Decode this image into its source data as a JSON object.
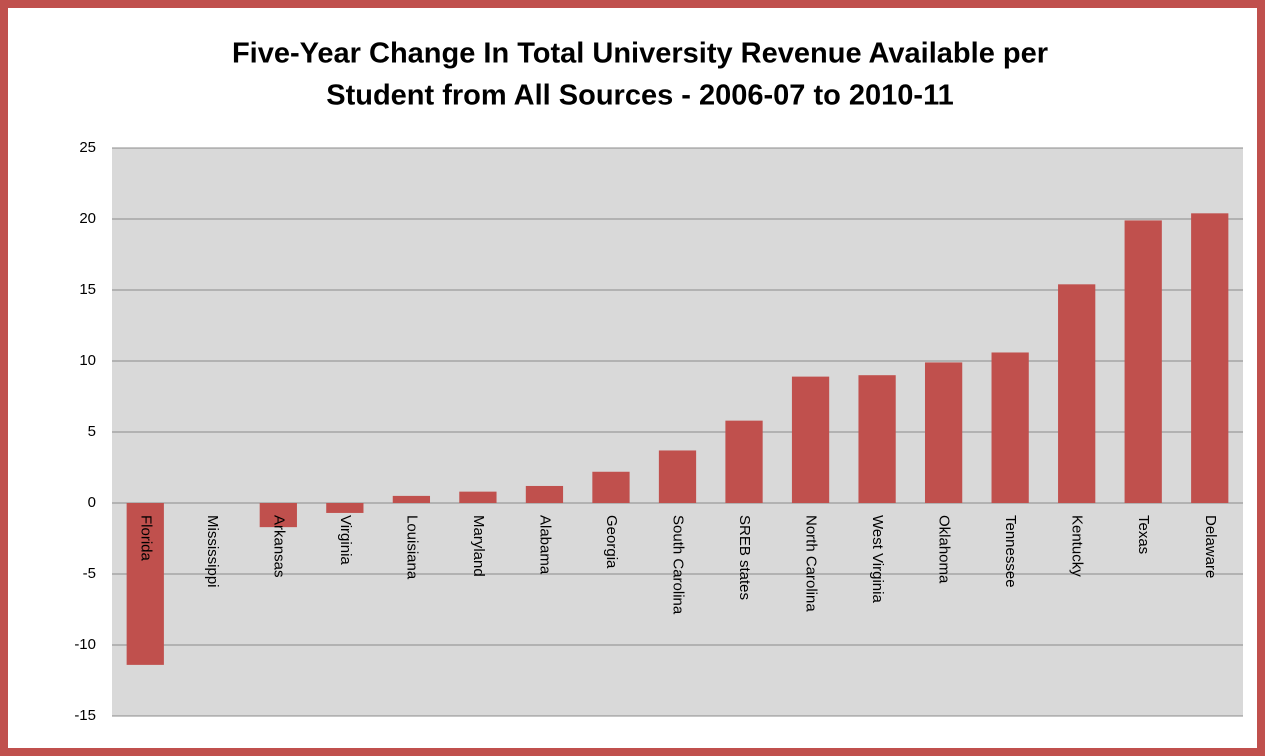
{
  "chart_data": {
    "type": "bar",
    "title": [
      "Five-Year Change In Total University Revenue Available per",
      "Student from All Sources - 2006-07 to 2010-11"
    ],
    "categories": [
      "Florida",
      "Mississippi",
      "Arkansas",
      "Virginia",
      "Louisiana",
      "Maryland",
      "Alabama",
      "Georgia",
      "South Carolina",
      "SREB states",
      "North Carolina",
      "West Virginia",
      "Oklahoma",
      "Tennessee",
      "Kentucky",
      "Texas",
      "Delaware"
    ],
    "values": [
      -11.4,
      0,
      -1.7,
      -0.7,
      0.5,
      0.8,
      1.2,
      2.2,
      3.7,
      5.8,
      8.9,
      9.0,
      9.9,
      10.6,
      15.4,
      19.9,
      20.4
    ],
    "color": "#c0504d",
    "ylim": [
      -15,
      25
    ],
    "yticks": [
      -15,
      -10,
      -5,
      0,
      5,
      10,
      15,
      20,
      25
    ],
    "grid": true
  }
}
